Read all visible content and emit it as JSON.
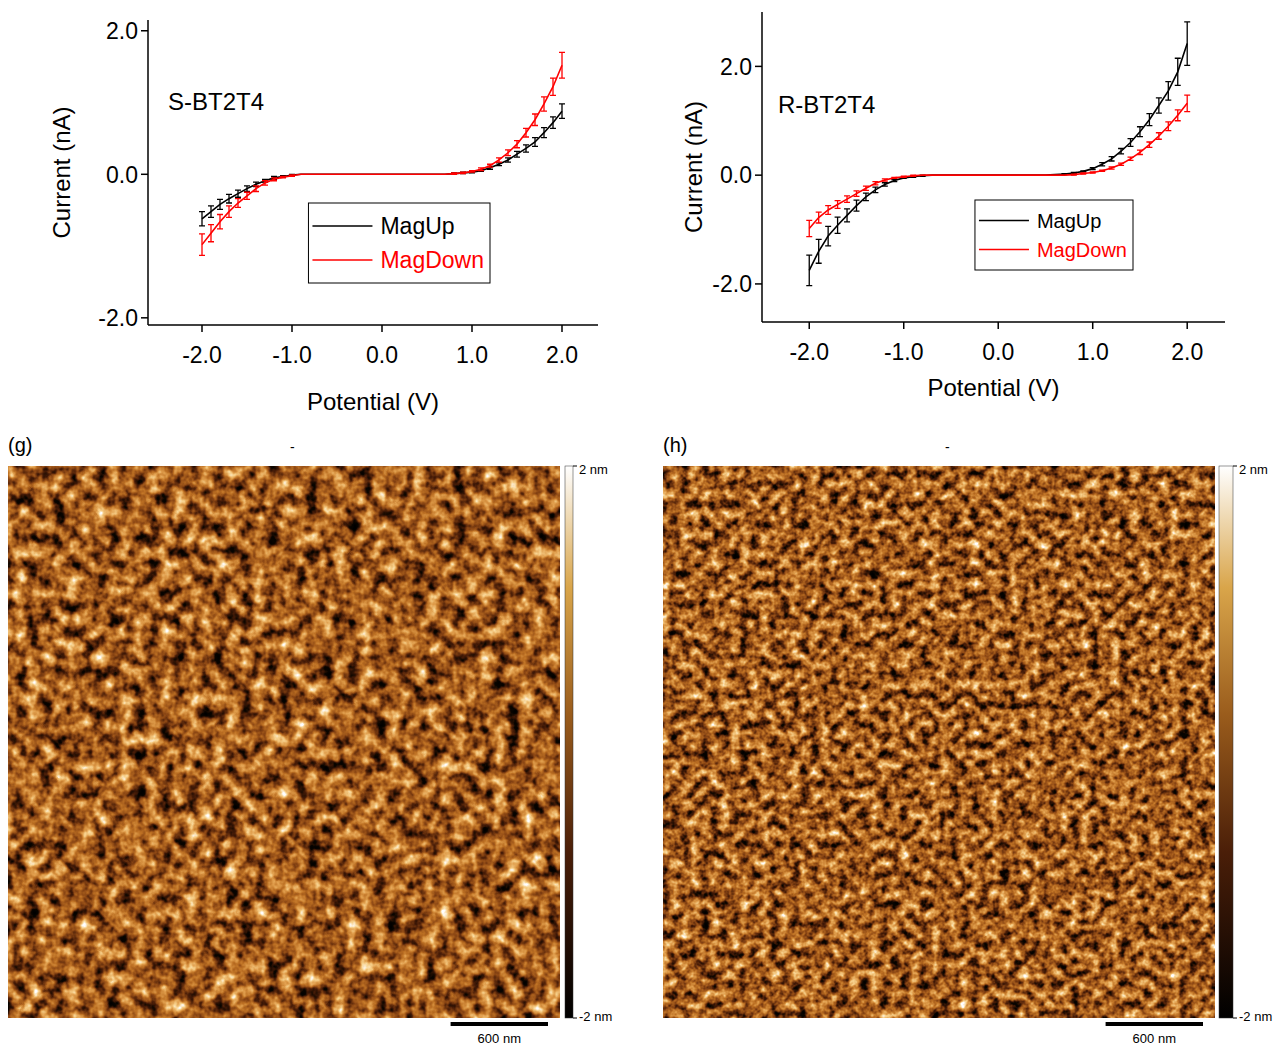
{
  "chart_data": [
    {
      "type": "line",
      "title": "S-BT2T4",
      "xlabel": "Potential (V)",
      "ylabel": "Current (nA)",
      "x": [
        -2.0,
        -1.9,
        -1.8,
        -1.7,
        -1.6,
        -1.5,
        -1.4,
        -1.3,
        -1.2,
        -1.1,
        -1.0,
        -0.9,
        -0.8,
        -0.7,
        -0.6,
        -0.5,
        -0.4,
        -0.3,
        -0.2,
        -0.1,
        0.0,
        0.1,
        0.2,
        0.3,
        0.4,
        0.5,
        0.6,
        0.7,
        0.8,
        0.9,
        1.0,
        1.1,
        1.2,
        1.3,
        1.4,
        1.5,
        1.6,
        1.7,
        1.8,
        1.9,
        2.0
      ],
      "series": [
        {
          "name": "MagUp",
          "color": "#000000",
          "values": [
            -0.62,
            -0.52,
            -0.42,
            -0.34,
            -0.27,
            -0.2,
            -0.14,
            -0.09,
            -0.05,
            -0.03,
            -0.01,
            0,
            0,
            0,
            0,
            0,
            0,
            0,
            0,
            0,
            0,
            0,
            0,
            0,
            0,
            0,
            0,
            0,
            0.01,
            0.02,
            0.03,
            0.05,
            0.09,
            0.14,
            0.2,
            0.28,
            0.36,
            0.45,
            0.58,
            0.72,
            0.88
          ],
          "errors": [
            0.1,
            0.08,
            0.07,
            0.06,
            0.05,
            0.04,
            0.03,
            0.02,
            0.02,
            0.01,
            0.01,
            0,
            0,
            0,
            0,
            0,
            0,
            0,
            0,
            0,
            0,
            0,
            0,
            0,
            0,
            0,
            0,
            0,
            0.01,
            0.01,
            0.01,
            0.01,
            0.02,
            0.02,
            0.03,
            0.04,
            0.05,
            0.06,
            0.07,
            0.08,
            0.1
          ]
        },
        {
          "name": "MagDown",
          "color": "#ff0000",
          "values": [
            -0.98,
            -0.82,
            -0.66,
            -0.52,
            -0.4,
            -0.3,
            -0.2,
            -0.12,
            -0.07,
            -0.04,
            -0.02,
            0,
            0,
            0,
            0,
            0,
            0,
            0,
            0,
            0,
            0,
            0,
            0,
            0,
            0,
            0,
            0,
            0,
            0.01,
            0.02,
            0.04,
            0.07,
            0.12,
            0.2,
            0.3,
            0.42,
            0.58,
            0.76,
            0.98,
            1.22,
            1.52
          ],
          "errors": [
            0.15,
            0.12,
            0.1,
            0.08,
            0.06,
            0.05,
            0.04,
            0.03,
            0.02,
            0.01,
            0.01,
            0,
            0,
            0,
            0,
            0,
            0,
            0,
            0,
            0,
            0,
            0,
            0,
            0,
            0,
            0,
            0,
            0,
            0.01,
            0.01,
            0.01,
            0.02,
            0.02,
            0.03,
            0.04,
            0.05,
            0.06,
            0.08,
            0.1,
            0.12,
            0.18
          ]
        }
      ],
      "xlim": [
        -2.6,
        2.4
      ],
      "ylim": [
        -2.1,
        2.15
      ],
      "xticks": [
        {
          "value": -2,
          "label": "-2.0"
        },
        {
          "value": -1,
          "label": "-1.0"
        },
        {
          "value": 0,
          "label": "0.0"
        },
        {
          "value": 1,
          "label": "1.0"
        },
        {
          "value": 2,
          "label": "2.0"
        }
      ],
      "yticks": [
        {
          "value": -2,
          "label": "-2.0"
        },
        {
          "value": 0,
          "label": "0.0"
        },
        {
          "value": 2,
          "label": "2.0"
        }
      ],
      "legend": "lower right",
      "grid": false
    },
    {
      "type": "line",
      "title": "R-BT2T4",
      "xlabel": "Potential (V)",
      "ylabel": "Current (nA)",
      "x": [
        -2.0,
        -1.9,
        -1.8,
        -1.7,
        -1.6,
        -1.5,
        -1.4,
        -1.3,
        -1.2,
        -1.1,
        -1.0,
        -0.9,
        -0.8,
        -0.7,
        -0.6,
        -0.5,
        -0.4,
        -0.3,
        -0.2,
        -0.1,
        0.0,
        0.1,
        0.2,
        0.3,
        0.4,
        0.5,
        0.6,
        0.7,
        0.8,
        0.9,
        1.0,
        1.1,
        1.2,
        1.3,
        1.4,
        1.5,
        1.6,
        1.7,
        1.8,
        1.9,
        2.0
      ],
      "series": [
        {
          "name": "MagUp",
          "color": "#000000",
          "values": [
            -1.75,
            -1.4,
            -1.12,
            -0.92,
            -0.74,
            -0.56,
            -0.4,
            -0.27,
            -0.17,
            -0.1,
            -0.05,
            -0.03,
            -0.01,
            0,
            0,
            0,
            0,
            0,
            0,
            0,
            0,
            0,
            0,
            0,
            0,
            0,
            0.01,
            0.02,
            0.04,
            0.07,
            0.12,
            0.2,
            0.3,
            0.44,
            0.6,
            0.8,
            1.02,
            1.28,
            1.55,
            1.9,
            2.42
          ],
          "errors": [
            0.28,
            0.22,
            0.18,
            0.15,
            0.12,
            0.1,
            0.07,
            0.05,
            0.03,
            0.02,
            0.01,
            0.01,
            0.01,
            0,
            0,
            0,
            0,
            0,
            0,
            0,
            0,
            0,
            0,
            0,
            0,
            0,
            0,
            0.01,
            0.01,
            0.01,
            0.02,
            0.03,
            0.04,
            0.05,
            0.07,
            0.09,
            0.11,
            0.14,
            0.17,
            0.25,
            0.4
          ]
        },
        {
          "name": "MagDown",
          "color": "#ff0000",
          "values": [
            -0.98,
            -0.78,
            -0.64,
            -0.54,
            -0.44,
            -0.34,
            -0.24,
            -0.15,
            -0.09,
            -0.05,
            -0.03,
            -0.01,
            0,
            0,
            0,
            0,
            0,
            0,
            0,
            0,
            0,
            0,
            0,
            0,
            0,
            0,
            0,
            0,
            0.01,
            0.03,
            0.05,
            0.08,
            0.13,
            0.2,
            0.3,
            0.42,
            0.56,
            0.72,
            0.9,
            1.1,
            1.32
          ],
          "errors": [
            0.15,
            0.1,
            0.08,
            0.07,
            0.06,
            0.05,
            0.04,
            0.03,
            0.02,
            0.01,
            0.01,
            0.01,
            0,
            0,
            0,
            0,
            0,
            0,
            0,
            0,
            0,
            0,
            0,
            0,
            0,
            0,
            0,
            0,
            0.01,
            0.01,
            0.01,
            0.01,
            0.02,
            0.02,
            0.03,
            0.04,
            0.05,
            0.06,
            0.08,
            0.1,
            0.15
          ]
        }
      ],
      "xlim": [
        -2.5,
        2.4
      ],
      "ylim": [
        -2.7,
        3.0
      ],
      "xticks": [
        {
          "value": -2,
          "label": "-2.0"
        },
        {
          "value": -1,
          "label": "-1.0"
        },
        {
          "value": 0,
          "label": "0.0"
        },
        {
          "value": 1,
          "label": "1.0"
        },
        {
          "value": 2,
          "label": "2.0"
        }
      ],
      "yticks": [
        {
          "value": -2,
          "label": "-2.0"
        },
        {
          "value": 0,
          "label": "0.0"
        },
        {
          "value": 2,
          "label": "2.0"
        }
      ],
      "legend": "lower right",
      "grid": false
    },
    {
      "type": "image",
      "panel": "(g)",
      "top_mark": "-",
      "colorbar": {
        "range": [
          -2,
          2
        ],
        "ticks": [
          {
            "value": 2,
            "label": "2 nm"
          },
          {
            "value": -2,
            "label": "-2 nm"
          }
        ]
      },
      "extent": 3400,
      "scale_bar": {
        "value": 600,
        "label": "600 nm"
      }
    },
    {
      "type": "image",
      "panel": "(h)",
      "top_mark": "-",
      "colorbar": {
        "range": [
          -2,
          2
        ],
        "ticks": [
          {
            "value": 2,
            "label": "2 nm"
          },
          {
            "value": -2,
            "label": "-2 nm"
          }
        ]
      },
      "extent": 3400,
      "scale_bar": {
        "value": 600,
        "label": "600 nm"
      }
    }
  ]
}
